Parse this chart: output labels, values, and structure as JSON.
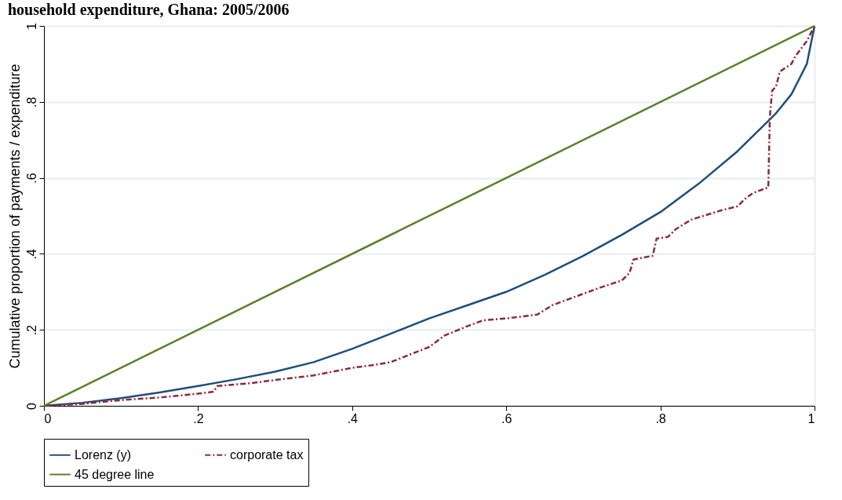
{
  "chart_data": {
    "type": "line",
    "title": "household expenditure, Ghana: 2005/2006",
    "ylabel": "Cumulative proportion of payments / expenditure",
    "xlim": [
      0,
      1
    ],
    "ylim": [
      0,
      1
    ],
    "xticks": [
      0,
      {
        "value": 0.2,
        "label": ".2"
      },
      {
        "value": 0.4,
        "label": ".4"
      },
      {
        "value": 0.6,
        "label": ".6"
      },
      {
        "value": 0.8,
        "label": ".8"
      },
      1
    ],
    "yticks": [
      0,
      {
        "value": 0.2,
        "label": ".2"
      },
      {
        "value": 0.4,
        "label": ".4"
      },
      {
        "value": 0.6,
        "label": ".6"
      },
      {
        "value": 0.8,
        "label": ".8"
      },
      1
    ],
    "grid": "y",
    "legend": "bottom",
    "marker": "none",
    "series": [
      {
        "name": "Lorenz (y)",
        "color": "#1f4e79",
        "line_style": "solid",
        "x": [
          0,
          0.05,
          0.1,
          0.15,
          0.2,
          0.25,
          0.3,
          0.35,
          0.4,
          0.45,
          0.5,
          0.55,
          0.6,
          0.65,
          0.7,
          0.75,
          0.8,
          0.85,
          0.9,
          0.95,
          0.97,
          0.99,
          1
        ],
        "values": [
          0,
          0.008,
          0.02,
          0.035,
          0.052,
          0.07,
          0.09,
          0.115,
          0.15,
          0.19,
          0.23,
          0.265,
          0.3,
          0.345,
          0.395,
          0.45,
          0.51,
          0.585,
          0.67,
          0.77,
          0.82,
          0.9,
          1
        ]
      },
      {
        "name": "corporate tax",
        "color": "#8b2b35",
        "line_style": "dashed",
        "x": [
          0,
          0.05,
          0.1,
          0.15,
          0.2,
          0.22,
          0.225,
          0.27,
          0.3,
          0.35,
          0.4,
          0.43,
          0.45,
          0.5,
          0.52,
          0.55,
          0.57,
          0.6,
          0.64,
          0.66,
          0.7,
          0.72,
          0.75,
          0.76,
          0.765,
          0.79,
          0.795,
          0.81,
          0.82,
          0.84,
          0.88,
          0.9,
          0.91,
          0.92,
          0.94,
          0.942,
          0.945,
          0.95,
          0.955,
          0.97,
          0.975,
          0.99,
          1
        ],
        "values": [
          0,
          0.005,
          0.015,
          0.022,
          0.032,
          0.037,
          0.052,
          0.06,
          0.068,
          0.08,
          0.1,
          0.108,
          0.115,
          0.155,
          0.185,
          0.21,
          0.225,
          0.23,
          0.24,
          0.265,
          0.295,
          0.31,
          0.33,
          0.35,
          0.385,
          0.395,
          0.44,
          0.445,
          0.465,
          0.49,
          0.515,
          0.525,
          0.545,
          0.56,
          0.575,
          0.76,
          0.83,
          0.84,
          0.88,
          0.9,
          0.92,
          0.96,
          1
        ]
      },
      {
        "name": "45 degree line",
        "color": "#5b7f2b",
        "line_style": "solid",
        "x": [
          0,
          1
        ],
        "values": [
          0,
          1
        ]
      }
    ]
  }
}
